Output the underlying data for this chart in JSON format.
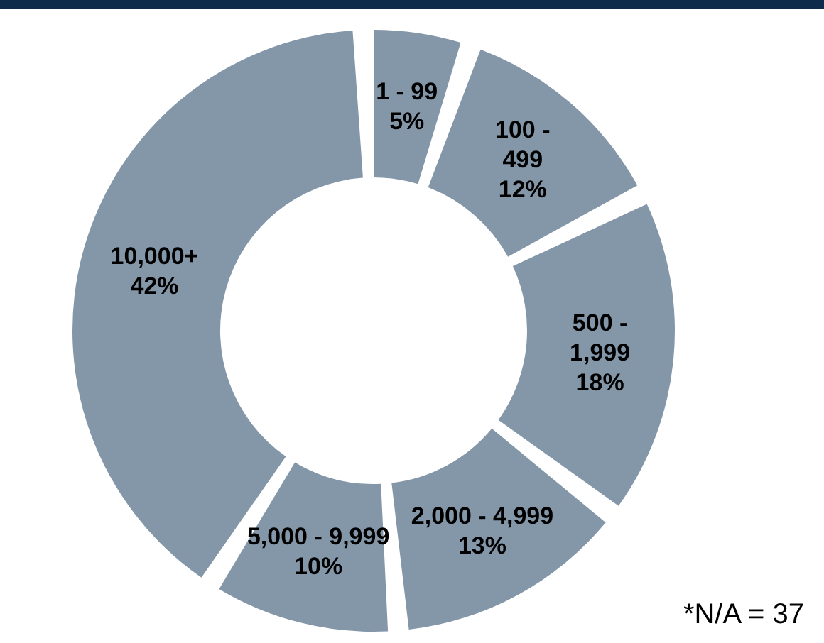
{
  "chart_data": {
    "type": "donut",
    "categories": [
      "1 - 99",
      "100 - 499",
      "500 - 1,999",
      "2,000 - 4,999",
      "5,000 - 9,999",
      "10,000+"
    ],
    "values": [
      5,
      12,
      18,
      13,
      10,
      42
    ],
    "colors": [
      "#8497a9",
      "#8497a9",
      "#8497a9",
      "#8497a9",
      "#8497a9",
      "#8497a9"
    ],
    "value_labels": [
      "5%",
      "12%",
      "18%",
      "13%",
      "10%",
      "42%"
    ],
    "annotations": [
      "*N/A = 37"
    ]
  }
}
